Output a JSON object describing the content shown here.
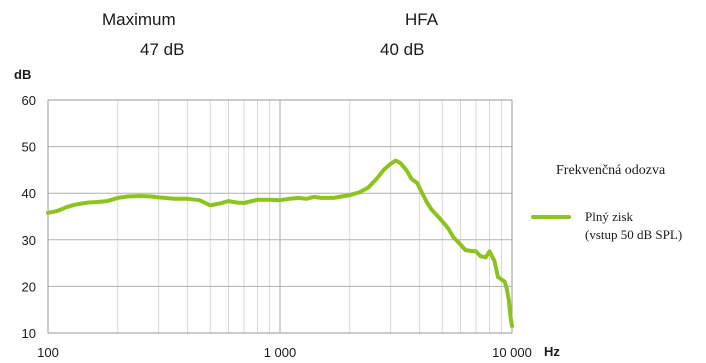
{
  "header": {
    "maximum_label": "Maximum",
    "maximum_value": "47 dB",
    "hfa_label": "HFA",
    "hfa_value": "40 dB"
  },
  "chart_data": {
    "type": "line",
    "title": "",
    "ylabel": "dB",
    "xlabel": "Hz",
    "xscale": "log",
    "xlim": [
      100,
      10000
    ],
    "ylim": [
      10,
      60
    ],
    "grid": true,
    "x_tick_labels": [
      "100",
      "1 000",
      "10 000"
    ],
    "y_tick_labels": [
      "60",
      "50",
      "40",
      "30",
      "20",
      "10"
    ],
    "legend": {
      "title": "Frekvenčná odozva",
      "placement": "right",
      "entries": [
        {
          "line1": "Plný zisk",
          "line2": "(vstup 50 dB SPL)",
          "color": "#8cc31f"
        }
      ]
    },
    "series": [
      {
        "color": "#8cc31f",
        "x": [
          100,
          110,
          120,
          130,
          140,
          150,
          160,
          170,
          180,
          200,
          220,
          250,
          280,
          300,
          320,
          350,
          400,
          450,
          500,
          550,
          600,
          650,
          700,
          800,
          900,
          1000,
          1100,
          1200,
          1300,
          1400,
          1500,
          1700,
          2000,
          2200,
          2400,
          2600,
          2800,
          3000,
          3150,
          3300,
          3500,
          3700,
          3900,
          4100,
          4300,
          4500,
          4800,
          5000,
          5300,
          5600,
          6000,
          6300,
          6700,
          7000,
          7300,
          7700,
          8000,
          8400,
          8700,
          9000,
          9300,
          9500,
          9700,
          9850,
          10000
        ],
        "y": [
          35.8,
          36.2,
          37.0,
          37.5,
          37.8,
          38.0,
          38.1,
          38.2,
          38.3,
          39.0,
          39.3,
          39.4,
          39.3,
          39.1,
          39.0,
          38.8,
          38.8,
          38.5,
          37.4,
          37.8,
          38.3,
          38.0,
          37.9,
          38.6,
          38.6,
          38.5,
          38.8,
          39.0,
          38.8,
          39.2,
          39.0,
          39.0,
          39.6,
          40.2,
          41.2,
          43.0,
          45.0,
          46.3,
          47.0,
          46.5,
          45.0,
          43.0,
          42.2,
          40.0,
          38.0,
          36.5,
          35.0,
          34.0,
          32.5,
          30.5,
          29.0,
          27.8,
          27.6,
          27.5,
          26.5,
          26.2,
          27.5,
          25.5,
          22.0,
          21.5,
          21.0,
          19.5,
          17.0,
          13.5,
          11.5
        ]
      }
    ]
  }
}
